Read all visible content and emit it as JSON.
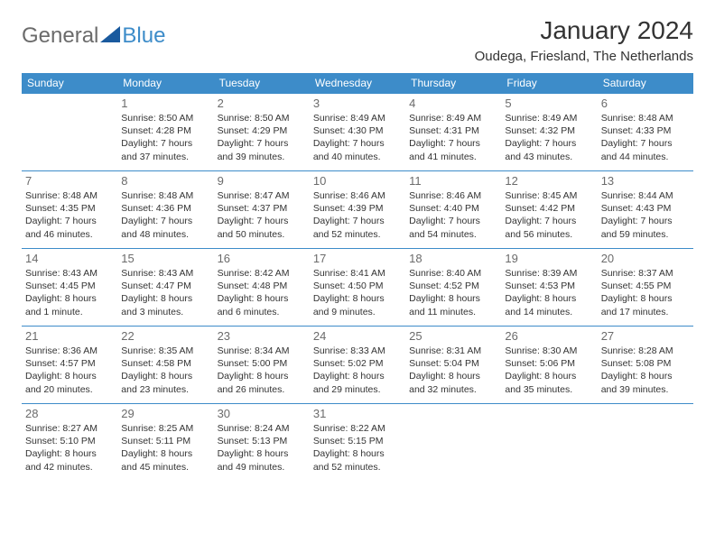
{
  "logo": {
    "text1": "General",
    "text2": "Blue",
    "triangle_color": "#1a5a9e"
  },
  "title": "January 2024",
  "location": "Oudega, Friesland, The Netherlands",
  "header_bg": "#3d8cc9",
  "header_fg": "#ffffff",
  "rule_color": "#3d8cc9",
  "weekdays": [
    "Sunday",
    "Monday",
    "Tuesday",
    "Wednesday",
    "Thursday",
    "Friday",
    "Saturday"
  ],
  "weeks": [
    [
      null,
      {
        "n": "1",
        "sr": "8:50 AM",
        "ss": "4:28 PM",
        "dl": "7 hours and 37 minutes."
      },
      {
        "n": "2",
        "sr": "8:50 AM",
        "ss": "4:29 PM",
        "dl": "7 hours and 39 minutes."
      },
      {
        "n": "3",
        "sr": "8:49 AM",
        "ss": "4:30 PM",
        "dl": "7 hours and 40 minutes."
      },
      {
        "n": "4",
        "sr": "8:49 AM",
        "ss": "4:31 PM",
        "dl": "7 hours and 41 minutes."
      },
      {
        "n": "5",
        "sr": "8:49 AM",
        "ss": "4:32 PM",
        "dl": "7 hours and 43 minutes."
      },
      {
        "n": "6",
        "sr": "8:48 AM",
        "ss": "4:33 PM",
        "dl": "7 hours and 44 minutes."
      }
    ],
    [
      {
        "n": "7",
        "sr": "8:48 AM",
        "ss": "4:35 PM",
        "dl": "7 hours and 46 minutes."
      },
      {
        "n": "8",
        "sr": "8:48 AM",
        "ss": "4:36 PM",
        "dl": "7 hours and 48 minutes."
      },
      {
        "n": "9",
        "sr": "8:47 AM",
        "ss": "4:37 PM",
        "dl": "7 hours and 50 minutes."
      },
      {
        "n": "10",
        "sr": "8:46 AM",
        "ss": "4:39 PM",
        "dl": "7 hours and 52 minutes."
      },
      {
        "n": "11",
        "sr": "8:46 AM",
        "ss": "4:40 PM",
        "dl": "7 hours and 54 minutes."
      },
      {
        "n": "12",
        "sr": "8:45 AM",
        "ss": "4:42 PM",
        "dl": "7 hours and 56 minutes."
      },
      {
        "n": "13",
        "sr": "8:44 AM",
        "ss": "4:43 PM",
        "dl": "7 hours and 59 minutes."
      }
    ],
    [
      {
        "n": "14",
        "sr": "8:43 AM",
        "ss": "4:45 PM",
        "dl": "8 hours and 1 minute."
      },
      {
        "n": "15",
        "sr": "8:43 AM",
        "ss": "4:47 PM",
        "dl": "8 hours and 3 minutes."
      },
      {
        "n": "16",
        "sr": "8:42 AM",
        "ss": "4:48 PM",
        "dl": "8 hours and 6 minutes."
      },
      {
        "n": "17",
        "sr": "8:41 AM",
        "ss": "4:50 PM",
        "dl": "8 hours and 9 minutes."
      },
      {
        "n": "18",
        "sr": "8:40 AM",
        "ss": "4:52 PM",
        "dl": "8 hours and 11 minutes."
      },
      {
        "n": "19",
        "sr": "8:39 AM",
        "ss": "4:53 PM",
        "dl": "8 hours and 14 minutes."
      },
      {
        "n": "20",
        "sr": "8:37 AM",
        "ss": "4:55 PM",
        "dl": "8 hours and 17 minutes."
      }
    ],
    [
      {
        "n": "21",
        "sr": "8:36 AM",
        "ss": "4:57 PM",
        "dl": "8 hours and 20 minutes."
      },
      {
        "n": "22",
        "sr": "8:35 AM",
        "ss": "4:58 PM",
        "dl": "8 hours and 23 minutes."
      },
      {
        "n": "23",
        "sr": "8:34 AM",
        "ss": "5:00 PM",
        "dl": "8 hours and 26 minutes."
      },
      {
        "n": "24",
        "sr": "8:33 AM",
        "ss": "5:02 PM",
        "dl": "8 hours and 29 minutes."
      },
      {
        "n": "25",
        "sr": "8:31 AM",
        "ss": "5:04 PM",
        "dl": "8 hours and 32 minutes."
      },
      {
        "n": "26",
        "sr": "8:30 AM",
        "ss": "5:06 PM",
        "dl": "8 hours and 35 minutes."
      },
      {
        "n": "27",
        "sr": "8:28 AM",
        "ss": "5:08 PM",
        "dl": "8 hours and 39 minutes."
      }
    ],
    [
      {
        "n": "28",
        "sr": "8:27 AM",
        "ss": "5:10 PM",
        "dl": "8 hours and 42 minutes."
      },
      {
        "n": "29",
        "sr": "8:25 AM",
        "ss": "5:11 PM",
        "dl": "8 hours and 45 minutes."
      },
      {
        "n": "30",
        "sr": "8:24 AM",
        "ss": "5:13 PM",
        "dl": "8 hours and 49 minutes."
      },
      {
        "n": "31",
        "sr": "8:22 AM",
        "ss": "5:15 PM",
        "dl": "8 hours and 52 minutes."
      },
      null,
      null,
      null
    ]
  ],
  "labels": {
    "sunrise": "Sunrise: ",
    "sunset": "Sunset: ",
    "daylight": "Daylight: "
  }
}
